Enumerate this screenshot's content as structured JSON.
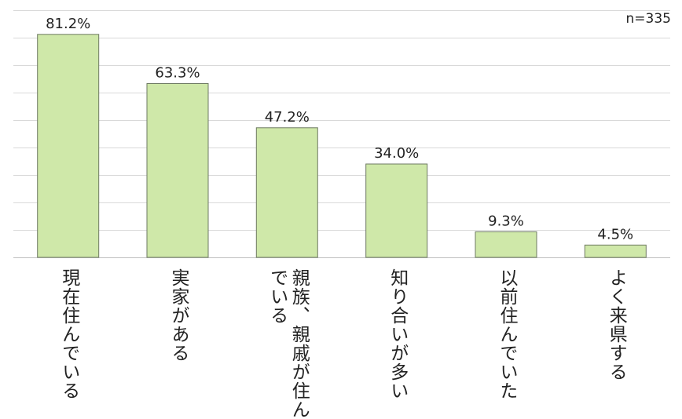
{
  "sample_note": "n=335",
  "chart_data": {
    "type": "bar",
    "categories": [
      "現在住んでいる",
      "実家がある",
      "親族、親戚が住んでいる",
      "知り合いが多い",
      "以前住んでいた",
      "よく来県する"
    ],
    "category_lines": [
      [
        "現在住んでいる"
      ],
      [
        "実家がある"
      ],
      [
        "親族、親戚が住ん",
        "でいる"
      ],
      [
        "知り合いが多い"
      ],
      [
        "以前住んでいた"
      ],
      [
        "よく来県する"
      ]
    ],
    "values": [
      81.2,
      63.3,
      47.2,
      34.0,
      9.3,
      4.5
    ],
    "value_labels": [
      "81.2%",
      "63.3%",
      "47.2%",
      "34.0%",
      "9.3%",
      "4.5%"
    ],
    "ylim": [
      0,
      90
    ],
    "grid": true,
    "colors": {
      "bar_fill": "#cfe8a9",
      "bar_stroke": "#6e7a62",
      "grid": "#d9d9d9",
      "axis": "#bfbfbf"
    }
  }
}
